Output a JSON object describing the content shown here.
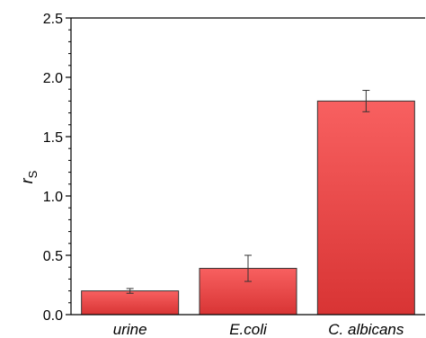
{
  "chart_data": {
    "type": "bar",
    "title": "",
    "xlabel": "",
    "ylabel": "r",
    "ylabel_subscript": "S",
    "categories": [
      "urine",
      "E.coli",
      "C. albicans"
    ],
    "values": [
      0.2,
      0.39,
      1.8
    ],
    "errors": [
      0.02,
      0.11,
      0.09
    ],
    "ylim": [
      0,
      2.5
    ],
    "yticks": [
      {
        "value": 0.0,
        "label": "0.0"
      },
      {
        "value": 0.5,
        "label": "0.5"
      },
      {
        "value": 1.0,
        "label": "1.0"
      },
      {
        "value": 1.5,
        "label": "1.5"
      },
      {
        "value": 2.0,
        "label": "2.0"
      },
      {
        "value": 2.5,
        "label": "2.5"
      }
    ],
    "grid": false,
    "legend": "none",
    "bar_color_top": "#f86060",
    "bar_color_bottom": "#d83434",
    "bar_edge_color": "#333333"
  }
}
